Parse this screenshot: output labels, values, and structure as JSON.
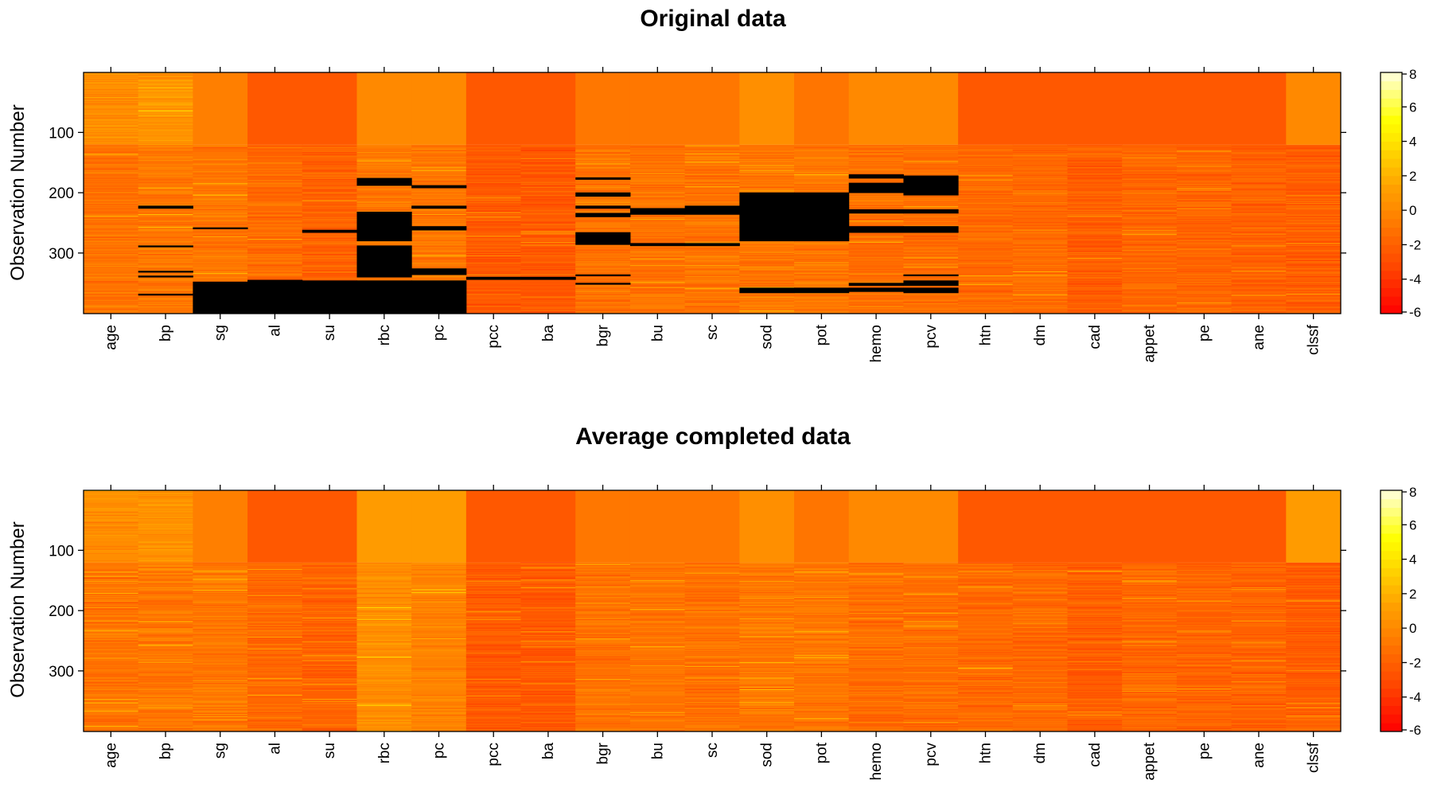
{
  "chart_data": [
    {
      "type": "heatmap",
      "title": "Original data",
      "ylabel": "Observation Number",
      "xlabel": "",
      "columns": [
        "age",
        "bp",
        "sg",
        "al",
        "su",
        "rbc",
        "pc",
        "pcc",
        "ba",
        "bgr",
        "bu",
        "sc",
        "sod",
        "pot",
        "hemo",
        "pcv",
        "htn",
        "dm",
        "cad",
        "appet",
        "pe",
        "ane",
        "clssf"
      ],
      "n_observations": 400,
      "ylim": [
        1,
        400
      ],
      "yticks": [
        100,
        200,
        300
      ],
      "color_scale": {
        "min": -6,
        "max": 8,
        "ticks": [
          -6,
          -4,
          -2,
          0,
          2,
          4,
          6,
          8
        ],
        "low_color": "#ff0000",
        "high_color": "#ffffe0"
      },
      "missing_color": "#000000",
      "column_levels": {
        "first_120": [
          0.2,
          0.5,
          -0.5,
          -2.4,
          -2.4,
          0.0,
          0.0,
          -2.4,
          -2.4,
          -0.9,
          -0.9,
          -0.9,
          0.3,
          -1.0,
          0.0,
          0.0,
          -2.4,
          -2.4,
          -2.4,
          -2.4,
          -2.4,
          -2.4,
          0.0
        ],
        "after_120": [
          -1.2,
          -1.0,
          -1.0,
          -1.6,
          -2.0,
          -1.0,
          -1.0,
          -2.4,
          -2.4,
          -1.2,
          -1.2,
          -1.2,
          -1.0,
          -1.0,
          -1.4,
          -1.4,
          -1.6,
          -1.6,
          -2.2,
          -1.8,
          -1.8,
          -2.0,
          -2.2
        ]
      },
      "missing_blocks": [
        {
          "column": "bp",
          "rows": [
            [
              222,
              226
            ],
            [
              288,
              290
            ],
            [
              330,
              332
            ],
            [
              338,
              340
            ],
            [
              368,
              370
            ]
          ]
        },
        {
          "column": "sg",
          "rows": [
            [
              258,
              260
            ],
            [
              348,
              400
            ]
          ]
        },
        {
          "column": "al",
          "rows": [
            [
              345,
              400
            ]
          ]
        },
        {
          "column": "su",
          "rows": [
            [
              262,
              266
            ],
            [
              346,
              400
            ]
          ]
        },
        {
          "column": "rbc",
          "rows": [
            [
              176,
              188
            ],
            [
              232,
              280
            ],
            [
              288,
              340
            ],
            [
              346,
              400
            ]
          ]
        },
        {
          "column": "pc",
          "rows": [
            [
              188,
              192
            ],
            [
              222,
              226
            ],
            [
              256,
              262
            ],
            [
              326,
              336
            ],
            [
              346,
              400
            ]
          ]
        },
        {
          "column": "pcc",
          "rows": [
            [
              340,
              344
            ]
          ]
        },
        {
          "column": "ba",
          "rows": [
            [
              340,
              344
            ]
          ]
        },
        {
          "column": "bgr",
          "rows": [
            [
              175,
              178
            ],
            [
              200,
              206
            ],
            [
              222,
              226
            ],
            [
              234,
              240
            ],
            [
              266,
              286
            ],
            [
              336,
              338
            ],
            [
              350,
              352
            ]
          ]
        },
        {
          "column": "bu",
          "rows": [
            [
              226,
              236
            ],
            [
              284,
              288
            ]
          ]
        },
        {
          "column": "sc",
          "rows": [
            [
              222,
              236
            ],
            [
              284,
              288
            ]
          ]
        },
        {
          "column": "sod",
          "rows": [
            [
              200,
              280
            ],
            [
              358,
              366
            ]
          ]
        },
        {
          "column": "pot",
          "rows": [
            [
              200,
              280
            ],
            [
              358,
              366
            ]
          ]
        },
        {
          "column": "hemo",
          "rows": [
            [
              170,
              176
            ],
            [
              184,
              200
            ],
            [
              228,
              234
            ],
            [
              256,
              266
            ],
            [
              350,
              354
            ],
            [
              358,
              364
            ]
          ]
        },
        {
          "column": "pcv",
          "rows": [
            [
              172,
              204
            ],
            [
              228,
              234
            ],
            [
              256,
              266
            ],
            [
              336,
              338
            ],
            [
              346,
              354
            ],
            [
              358,
              366
            ]
          ]
        }
      ]
    },
    {
      "type": "heatmap",
      "title": "Average completed data",
      "ylabel": "Observation Number",
      "xlabel": "",
      "columns": [
        "age",
        "bp",
        "sg",
        "al",
        "su",
        "rbc",
        "pc",
        "pcc",
        "ba",
        "bgr",
        "bu",
        "sc",
        "sod",
        "pot",
        "hemo",
        "pcv",
        "htn",
        "dm",
        "cad",
        "appet",
        "pe",
        "ane",
        "clssf"
      ],
      "n_observations": 400,
      "ylim": [
        1,
        400
      ],
      "yticks": [
        100,
        200,
        300
      ],
      "color_scale": {
        "min": -6,
        "max": 8,
        "ticks": [
          -6,
          -4,
          -2,
          0,
          2,
          4,
          6,
          8
        ],
        "low_color": "#ff0000",
        "high_color": "#ffffe0"
      },
      "column_levels": {
        "first_120": [
          0.2,
          0.5,
          -0.5,
          -2.4,
          -2.4,
          1.0,
          1.0,
          -2.4,
          -2.4,
          -0.9,
          -0.9,
          -0.9,
          0.3,
          -1.0,
          0.0,
          0.0,
          -2.4,
          -2.4,
          -2.4,
          -2.4,
          -2.4,
          -2.4,
          1.0
        ],
        "after_120": [
          -1.2,
          -1.0,
          -1.0,
          -1.6,
          -2.0,
          0.2,
          -0.4,
          -2.4,
          -2.4,
          -1.2,
          -1.2,
          -1.2,
          -1.0,
          -1.0,
          -1.4,
          -1.4,
          -1.6,
          -1.6,
          -2.2,
          -1.8,
          -1.8,
          -2.0,
          -2.2
        ]
      }
    }
  ]
}
